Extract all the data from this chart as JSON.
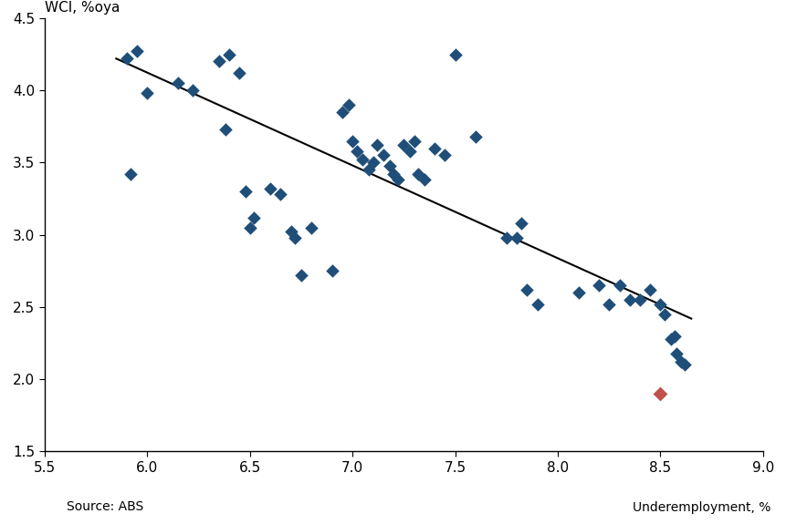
{
  "ylabel": "WCI, %oya",
  "xlabel": "Underemployment, %",
  "source": "Source: ABS",
  "xlim": [
    5.5,
    9.0
  ],
  "ylim": [
    1.5,
    4.5
  ],
  "xticks": [
    5.5,
    6.0,
    6.5,
    7.0,
    7.5,
    8.0,
    8.5,
    9.0
  ],
  "yticks": [
    1.5,
    2.0,
    2.5,
    3.0,
    3.5,
    4.0,
    4.5
  ],
  "blue_color": "#1F4E79",
  "red_color": "#C0504D",
  "trendline_color": "#000000",
  "blue_points": [
    [
      5.9,
      4.22
    ],
    [
      5.95,
      4.27
    ],
    [
      6.0,
      3.98
    ],
    [
      5.92,
      3.42
    ],
    [
      6.15,
      4.05
    ],
    [
      6.22,
      4.0
    ],
    [
      6.35,
      4.2
    ],
    [
      6.4,
      4.25
    ],
    [
      6.45,
      4.12
    ],
    [
      6.38,
      3.73
    ],
    [
      6.48,
      3.3
    ],
    [
      6.5,
      3.05
    ],
    [
      6.52,
      3.12
    ],
    [
      6.6,
      3.32
    ],
    [
      6.65,
      3.28
    ],
    [
      6.7,
      3.02
    ],
    [
      6.72,
      2.98
    ],
    [
      6.75,
      2.72
    ],
    [
      6.8,
      3.05
    ],
    [
      6.9,
      2.75
    ],
    [
      6.95,
      3.85
    ],
    [
      6.98,
      3.9
    ],
    [
      7.0,
      3.65
    ],
    [
      7.02,
      3.58
    ],
    [
      7.05,
      3.52
    ],
    [
      7.08,
      3.45
    ],
    [
      7.1,
      3.5
    ],
    [
      7.12,
      3.62
    ],
    [
      7.15,
      3.55
    ],
    [
      7.18,
      3.48
    ],
    [
      7.2,
      3.42
    ],
    [
      7.22,
      3.38
    ],
    [
      7.25,
      3.62
    ],
    [
      7.28,
      3.58
    ],
    [
      7.3,
      3.65
    ],
    [
      7.32,
      3.42
    ],
    [
      7.35,
      3.38
    ],
    [
      7.4,
      3.6
    ],
    [
      7.45,
      3.55
    ],
    [
      7.5,
      4.25
    ],
    [
      7.6,
      3.68
    ],
    [
      7.75,
      2.98
    ],
    [
      7.8,
      2.98
    ],
    [
      7.82,
      3.08
    ],
    [
      7.85,
      2.62
    ],
    [
      7.9,
      2.52
    ],
    [
      8.1,
      2.6
    ],
    [
      8.2,
      2.65
    ],
    [
      8.25,
      2.52
    ],
    [
      8.3,
      2.65
    ],
    [
      8.35,
      2.55
    ],
    [
      8.4,
      2.55
    ],
    [
      8.45,
      2.62
    ],
    [
      8.5,
      2.52
    ],
    [
      8.52,
      2.45
    ],
    [
      8.55,
      2.28
    ],
    [
      8.57,
      2.3
    ],
    [
      8.58,
      2.18
    ],
    [
      8.6,
      2.12
    ],
    [
      8.62,
      2.1
    ]
  ],
  "red_point": [
    8.5,
    1.9
  ],
  "trend_x": [
    5.85,
    8.65
  ],
  "trend_y": [
    4.22,
    2.42
  ]
}
